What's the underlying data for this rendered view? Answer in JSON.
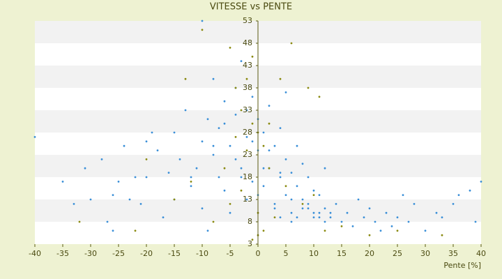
{
  "chart_data": {
    "type": "scatter",
    "title": "VITESSE vs PENTE",
    "x_label": "Pente [%]",
    "xlim": [
      -40,
      40
    ],
    "ylim": [
      3,
      53
    ],
    "xticks": [
      -40,
      -35,
      -30,
      -25,
      -20,
      -15,
      -10,
      -5,
      0,
      5,
      10,
      15,
      20,
      25,
      30,
      35,
      40
    ],
    "yticks": [
      3,
      8,
      13,
      18,
      23,
      28,
      33,
      38,
      43,
      48,
      53
    ],
    "grid": "bands",
    "series": [
      {
        "color": "#3a8fd8",
        "x": [
          -40,
          -35,
          -33,
          -31,
          -30,
          -28,
          -27,
          -26,
          -25,
          -24,
          -23,
          -22,
          -21,
          -20,
          -19,
          -18,
          -17,
          -16,
          -15,
          -14,
          -13,
          -12,
          -11,
          -10,
          -10,
          -9,
          -9,
          -8,
          -8,
          -7,
          -7,
          -6,
          -6,
          -5,
          -5,
          -4,
          -4,
          -3,
          -3,
          -2,
          -2,
          -1,
          -1,
          0,
          0,
          1,
          1,
          2,
          2,
          3,
          3,
          4,
          4,
          5,
          5,
          6,
          6,
          7,
          7,
          8,
          8,
          9,
          9,
          10,
          10,
          11,
          11,
          12,
          12,
          13,
          14,
          15,
          16,
          17,
          18,
          19,
          20,
          21,
          22,
          23,
          24,
          25,
          26,
          27,
          28,
          30,
          32,
          33,
          35,
          36,
          38,
          39,
          40,
          -15,
          -12,
          -8,
          -6,
          -4,
          -2,
          0,
          2,
          4,
          6,
          8,
          10,
          -10,
          -20,
          -26,
          5,
          3,
          1,
          -1,
          -3,
          12,
          11,
          9,
          13,
          7,
          6,
          4
        ],
        "values": [
          27,
          17,
          12,
          20,
          13,
          22,
          8,
          14,
          17,
          25,
          13,
          18,
          12,
          26,
          28,
          24,
          9,
          19,
          13,
          22,
          33,
          16,
          20,
          53,
          11,
          31,
          6,
          23,
          40,
          18,
          29,
          15,
          35,
          25,
          10,
          22,
          32,
          20,
          44,
          27,
          13,
          36,
          17,
          24,
          31,
          28,
          16,
          20,
          34,
          25,
          12,
          18,
          29,
          14,
          22,
          19,
          10,
          16,
          25,
          13,
          21,
          11,
          18,
          10,
          15,
          9,
          14,
          11,
          20,
          9,
          12,
          8,
          10,
          7,
          13,
          9,
          11,
          8,
          6,
          10,
          7,
          9,
          14,
          8,
          12,
          6,
          10,
          9,
          12,
          14,
          15,
          8,
          17,
          28,
          18,
          25,
          30,
          38,
          33,
          14,
          24,
          19,
          13,
          11,
          9,
          26,
          18,
          6,
          37,
          11,
          20,
          26,
          18,
          8,
          10,
          12,
          10,
          9,
          8,
          9
        ]
      },
      {
        "color": "#8a8a10",
        "x": [
          -10,
          -5,
          -1,
          6,
          -4,
          -2,
          -13,
          4,
          9,
          -3,
          -1,
          0,
          1,
          -2,
          2,
          -3,
          0,
          1,
          3,
          -5,
          -8,
          -15,
          -22,
          -32,
          12,
          15,
          20,
          25,
          33,
          -20,
          -6,
          5,
          8,
          10,
          -1,
          0,
          2,
          -4,
          11,
          -12
        ],
        "values": [
          51,
          47,
          45,
          48,
          38,
          40,
          40,
          40,
          38,
          33,
          30,
          28,
          25,
          24,
          20,
          15,
          10,
          6,
          9,
          12,
          8,
          13,
          6,
          8,
          6,
          7,
          5,
          6,
          5,
          22,
          20,
          16,
          12,
          14,
          4,
          5,
          30,
          27,
          36,
          17
        ]
      }
    ]
  }
}
